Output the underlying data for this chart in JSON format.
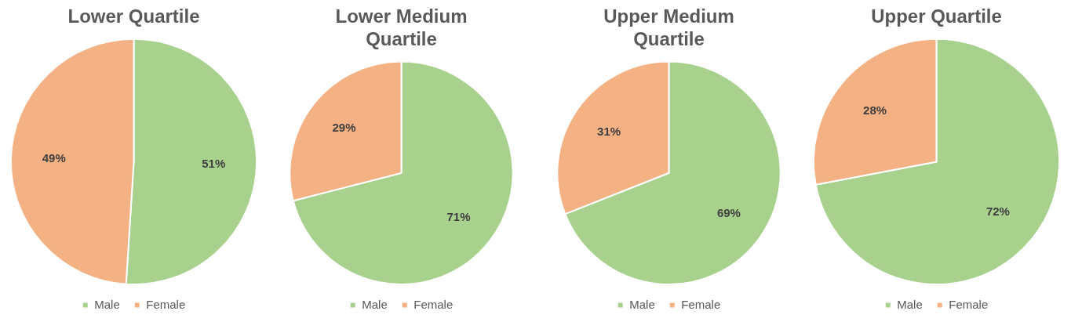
{
  "chart_data": [
    {
      "type": "pie",
      "title": "Lower Quartile",
      "categories": [
        "Male",
        "Female"
      ],
      "values": [
        51,
        49
      ],
      "colors": [
        "#a9d18e",
        "#f4b183"
      ],
      "value_labels": [
        "51%",
        "49%"
      ],
      "legend": "bottom"
    },
    {
      "type": "pie",
      "title": "Lower Medium Quartile",
      "categories": [
        "Male",
        "Female"
      ],
      "values": [
        71,
        29
      ],
      "colors": [
        "#a9d18e",
        "#f4b183"
      ],
      "value_labels": [
        "71%",
        "29%"
      ],
      "legend": "bottom"
    },
    {
      "type": "pie",
      "title": "Upper Medium Quartile",
      "categories": [
        "Male",
        "Female"
      ],
      "values": [
        69,
        31
      ],
      "colors": [
        "#a9d18e",
        "#f4b183"
      ],
      "value_labels": [
        "69%",
        "31%"
      ],
      "legend": "bottom"
    },
    {
      "type": "pie",
      "title": "Upper Quartile",
      "categories": [
        "Male",
        "Female"
      ],
      "values": [
        72,
        28
      ],
      "colors": [
        "#a9d18e",
        "#f4b183"
      ],
      "value_labels": [
        "72%",
        "28%"
      ],
      "legend": "bottom"
    }
  ]
}
